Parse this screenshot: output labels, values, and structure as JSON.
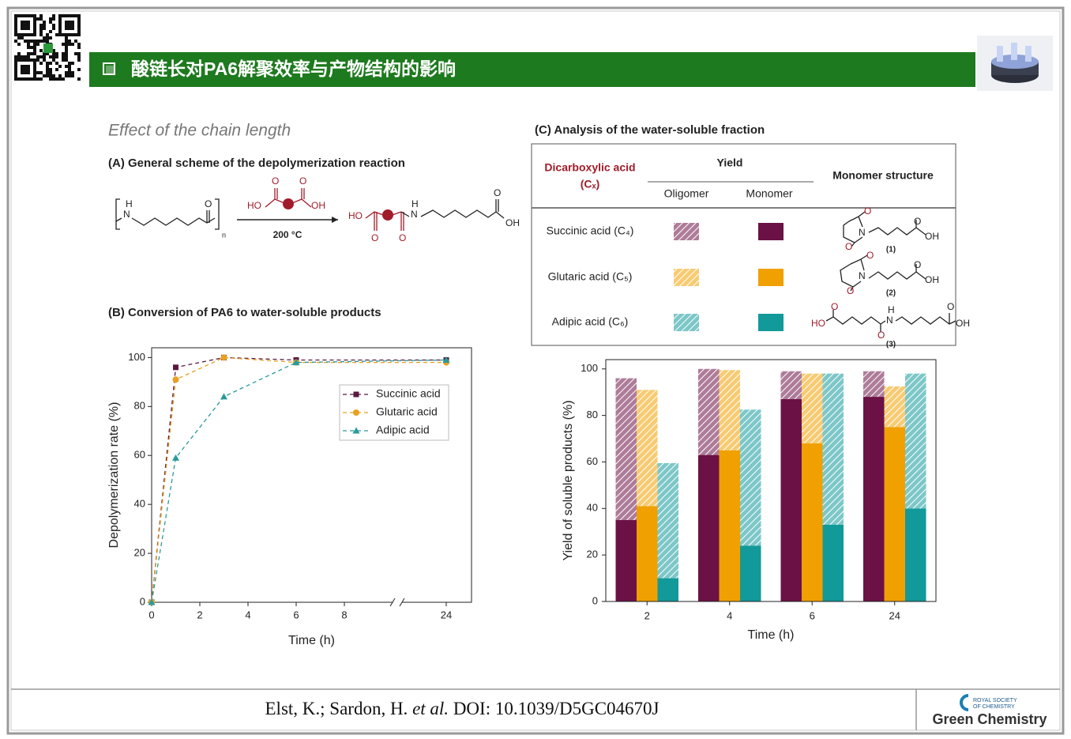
{
  "header": {
    "title": "酸链长对PA6解聚效率与产物结构的影响"
  },
  "section_title": "Effect of the chain length",
  "panel_a": {
    "title": "(A) General scheme of the depolymerization reaction",
    "polymer_atoms": [
      "H",
      "N",
      "O"
    ],
    "repeat": "n",
    "reagent_atoms": [
      "O",
      "O",
      "HO",
      "OH"
    ],
    "condition": "200 °C",
    "product_atoms": [
      "HO",
      "O",
      "O",
      "H",
      "N",
      "O",
      "OH"
    ]
  },
  "panel_c": {
    "title": "(C) Analysis of the water-soluble fraction",
    "table": {
      "header": [
        "Dicarboxylic acid",
        "(Cₓ)",
        "Yield",
        "Oligomer",
        "Monomer",
        "Monomer structure"
      ],
      "rows": [
        {
          "label": "Succinic acid (C₄)",
          "atoms": [
            "O",
            "N",
            "O",
            "O",
            "OH"
          ],
          "number": "(1)"
        },
        {
          "label": "Glutaric acid (C₅)",
          "atoms": [
            "O",
            "N",
            "O",
            "O",
            "OH"
          ],
          "number": "(2)"
        },
        {
          "label": "Adipic acid (C₆)",
          "atoms": [
            "O",
            "HO",
            "H",
            "N",
            "O",
            "O",
            "OH"
          ],
          "number": "(3)"
        }
      ]
    }
  },
  "chart_data": [
    {
      "type": "line",
      "title": "(B) Conversion of PA6 to water-soluble products",
      "x_label": "Time (h)",
      "y_label": "Depolymerization rate (%)",
      "x": [
        0,
        1,
        3,
        6,
        24
      ],
      "series": [
        {
          "name": "Succinic acid",
          "color": "#5a1a40",
          "marker": "square",
          "values": [
            0,
            96,
            100,
            99,
            99
          ]
        },
        {
          "name": "Glutaric acid",
          "color": "#e8a020",
          "marker": "circle",
          "values": [
            0,
            91,
            100,
            98,
            98
          ]
        },
        {
          "name": "Adipic acid",
          "color": "#2a9a9a",
          "marker": "triangle",
          "values": [
            0,
            59,
            84,
            98,
            99
          ]
        }
      ],
      "line_style": "dashed",
      "xlim": [
        0,
        25
      ],
      "xbreak": [
        10,
        23
      ],
      "xticks": [
        0,
        2,
        4,
        6,
        8,
        24
      ],
      "ylim": [
        0,
        104
      ],
      "yticks": [
        0,
        20,
        40,
        60,
        80,
        100
      ],
      "legend": "upper right"
    },
    {
      "type": "stacked_bar",
      "x_label": "Time (h)",
      "y_label": "Yield of soluble products (%)",
      "categories": [
        "2",
        "4",
        "6",
        "24"
      ],
      "series": [
        {
          "color": "#6b1145",
          "monomer": [
            35,
            63,
            87,
            88
          ],
          "oligomer": [
            61,
            37,
            12,
            11
          ]
        },
        {
          "color": "#f0a000",
          "monomer": [
            41,
            65,
            68,
            75
          ],
          "oligomer": [
            50,
            34.5,
            30,
            17.5
          ]
        },
        {
          "color": "#12999a",
          "monomer": [
            10,
            24,
            33,
            40
          ],
          "oligomer": [
            49.5,
            58.5,
            65,
            58
          ]
        }
      ],
      "ylim": [
        0,
        104
      ],
      "yticks": [
        0,
        20,
        40,
        60,
        80,
        100
      ]
    }
  ],
  "citation": {
    "authors": "Elst, K.; Sardon, H.",
    "etal": "et al.",
    "doi": "DOI: 10.1039/D5GC04670J"
  },
  "logo": {
    "society": [
      "ROYAL SOCIETY",
      "OF CHEMISTRY"
    ],
    "journal": "Green Chemistry"
  }
}
